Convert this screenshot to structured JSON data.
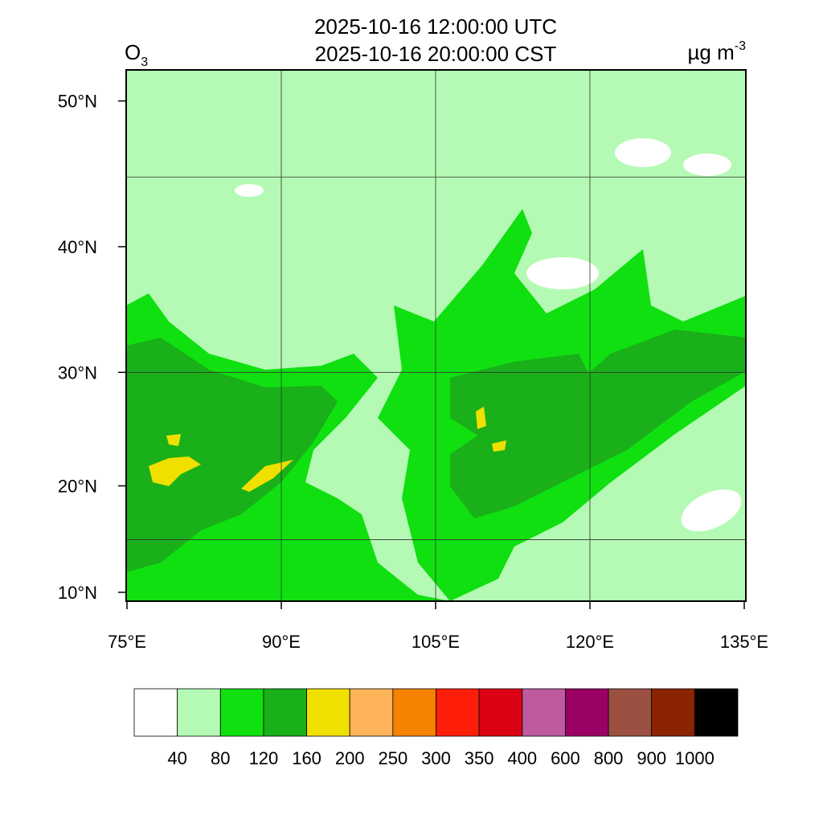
{
  "title_lines": [
    "2025-10-16 12:00:00 UTC",
    "2025-10-16 20:00:00 CST"
  ],
  "variable": {
    "base": "O",
    "sub": "3"
  },
  "units": {
    "base": "µg m",
    "sup": "-3"
  },
  "lat_ticks": [
    {
      "value": 50,
      "label": "50°N"
    },
    {
      "value": 40,
      "label": "40°N"
    },
    {
      "value": 30,
      "label": "30°N"
    },
    {
      "value": 20,
      "label": "20°N"
    },
    {
      "value": 10,
      "label": "10°N"
    }
  ],
  "lon_ticks": [
    {
      "value": 75,
      "label": "75°E"
    },
    {
      "value": 90,
      "label": "90°E"
    },
    {
      "value": 105,
      "label": "105°E"
    },
    {
      "value": 120,
      "label": "120°E"
    },
    {
      "value": 135,
      "label": "135°E"
    }
  ],
  "grid": {
    "lat": [
      15,
      30,
      45
    ],
    "lon": [
      90,
      105,
      120
    ]
  },
  "colorbar": {
    "colors": [
      "#ffffff",
      "#b4fab4",
      "#10e010",
      "#19b019",
      "#f0e000",
      "#ffb45a",
      "#f58200",
      "#ff1e0a",
      "#dc0014",
      "#be5aa0",
      "#9b0064",
      "#9b5041",
      "#8c2300",
      "#000000"
    ],
    "levels": [
      40,
      80,
      120,
      160,
      200,
      250,
      300,
      350,
      400,
      600,
      800,
      900,
      1000
    ]
  }
}
